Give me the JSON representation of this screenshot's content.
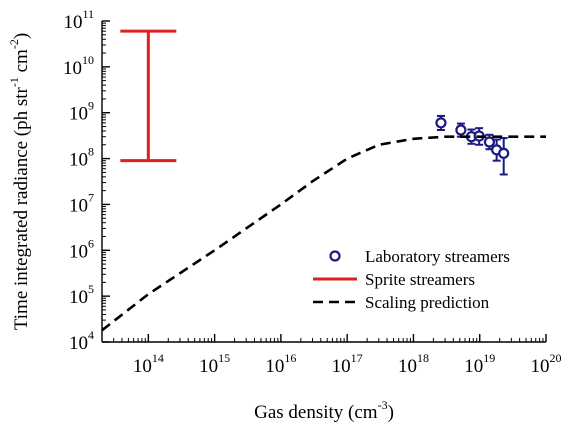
{
  "chart_data": {
    "type": "scatter",
    "xlabel": {
      "base": "Gas density (cm",
      "exp": "-3",
      "tail": ")"
    },
    "ylabel": {
      "parts": [
        {
          "t": "Time integrated radiance (ph str",
          "sup": false
        },
        {
          "t": "-1",
          "sup": true
        },
        {
          "t": " cm",
          "sup": false
        },
        {
          "t": "-2",
          "sup": true
        },
        {
          "t": ")",
          "sup": false
        }
      ]
    },
    "x_scale": "log",
    "y_scale": "log",
    "xlim": [
      20000000000000.0,
      1e+20
    ],
    "ylim": [
      10000.0,
      100000000000.0
    ],
    "x_ticks": [
      {
        "value": 100000000000000.0,
        "base": "10",
        "exp": "14"
      },
      {
        "value": 1000000000000000.0,
        "base": "10",
        "exp": "15"
      },
      {
        "value": 1e+16,
        "base": "10",
        "exp": "16"
      },
      {
        "value": 1e+17,
        "base": "10",
        "exp": "17"
      },
      {
        "value": 1e+18,
        "base": "10",
        "exp": "18"
      },
      {
        "value": 1e+19,
        "base": "10",
        "exp": "19"
      },
      {
        "value": 1e+20,
        "base": "10",
        "exp": "20"
      }
    ],
    "y_ticks": [
      {
        "value": 10000.0,
        "base": "10",
        "exp": "4"
      },
      {
        "value": 100000.0,
        "base": "10",
        "exp": "5"
      },
      {
        "value": 1000000.0,
        "base": "10",
        "exp": "6"
      },
      {
        "value": 10000000.0,
        "base": "10",
        "exp": "7"
      },
      {
        "value": 100000000.0,
        "base": "10",
        "exp": "8"
      },
      {
        "value": 1000000000.0,
        "base": "10",
        "exp": "9"
      },
      {
        "value": 10000000000.0,
        "base": "10",
        "exp": "10"
      },
      {
        "value": 100000000000.0,
        "base": "10",
        "exp": "11"
      }
    ],
    "grid": false,
    "legend_position": "bottom-right",
    "series": [
      {
        "name": "Laboratory streamers",
        "kind": "points",
        "color": "#1a1a80",
        "points": [
          {
            "x": 2.6e+18,
            "y": 600000000.0,
            "ylo": 420000000.0,
            "yhi": 850000000.0
          },
          {
            "x": 5.2e+18,
            "y": 420000000.0,
            "ylo": 300000000.0,
            "yhi": 580000000.0
          },
          {
            "x": 7.5e+18,
            "y": 300000000.0,
            "ylo": 210000000.0,
            "yhi": 430000000.0
          },
          {
            "x": 9.8e+18,
            "y": 310000000.0,
            "ylo": 200000000.0,
            "yhi": 460000000.0
          },
          {
            "x": 1.4e+19,
            "y": 230000000.0,
            "ylo": 160000000.0,
            "yhi": 330000000.0
          },
          {
            "x": 1.8e+19,
            "y": 155000000.0,
            "ylo": 90000000.0,
            "yhi": 260000000.0
          },
          {
            "x": 2.3e+19,
            "y": 130000000.0,
            "ylo": 45000000.0,
            "yhi": 280000000.0
          }
        ]
      },
      {
        "name": "Sprite streamers",
        "kind": "range",
        "color": "#e02020",
        "x": 100000000000000.0,
        "ylo": 90000000.0,
        "yhi": 60000000000.0
      },
      {
        "name": "Scaling prediction",
        "kind": "dashed-line",
        "color": "#000000",
        "points": [
          {
            "x": 20000000000000.0,
            "y": 18000.0
          },
          {
            "x": 100000000000000.0,
            "y": 110000.0
          },
          {
            "x": 1000000000000000.0,
            "y": 1000000.0
          },
          {
            "x": 1e+16,
            "y": 10000000.0
          },
          {
            "x": 3e+16,
            "y": 32000000.0
          },
          {
            "x": 1e+17,
            "y": 100000000.0
          },
          {
            "x": 3e+17,
            "y": 200000000.0
          },
          {
            "x": 1e+18,
            "y": 270000000.0
          },
          {
            "x": 3e+18,
            "y": 300000000.0
          },
          {
            "x": 1e+20,
            "y": 300000000.0
          }
        ]
      }
    ]
  }
}
